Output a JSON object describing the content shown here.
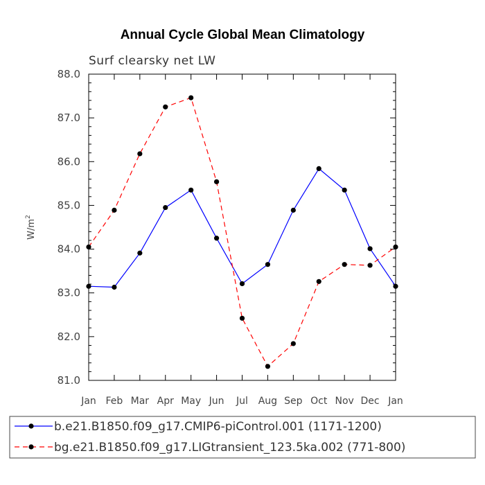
{
  "chart_data": {
    "type": "line",
    "title": "Annual Cycle Global Mean Climatology",
    "subtitle": "Surf clearsky net LW",
    "ylabel": "W/m",
    "ylabel_superscript": "2",
    "ylim": [
      81.0,
      88.0
    ],
    "y_ticks": [
      "81.0",
      "82.0",
      "83.0",
      "84.0",
      "85.0",
      "86.0",
      "87.0",
      "88.0"
    ],
    "categories": [
      "Jan",
      "Feb",
      "Mar",
      "Apr",
      "May",
      "Jun",
      "Jul",
      "Aug",
      "Sep",
      "Oct",
      "Nov",
      "Dec",
      "Jan"
    ],
    "grid": false,
    "legend_position": "bottom",
    "series": [
      {
        "name": "b.e21.B1850.f09_g17.CMIP6-piControl.001 (1171-1200)",
        "color": "#0000ff",
        "dash": "solid",
        "values": [
          83.15,
          83.13,
          83.91,
          84.95,
          85.35,
          84.25,
          83.21,
          83.65,
          84.89,
          85.84,
          85.35,
          84.01,
          83.15
        ]
      },
      {
        "name": "bg.e21.B1850.f09_g17.LIGtransient_123.5ka.002 (771-800)",
        "color": "#ff0000",
        "dash": "dashed",
        "values": [
          84.05,
          84.89,
          86.18,
          87.25,
          87.46,
          85.54,
          82.42,
          81.32,
          81.84,
          83.26,
          83.65,
          83.63,
          84.05
        ]
      }
    ]
  }
}
